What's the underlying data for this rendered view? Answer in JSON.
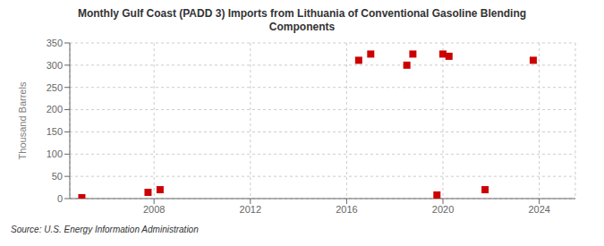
{
  "chart_data": {
    "type": "scatter",
    "title": "Monthly Gulf Coast (PADD 3) Imports from Lithuania of Conventional Gasoline Blending\nComponents",
    "ylabel": "Thousand Barrels",
    "annotations": [
      "Source: U.S. Energy Information Administration"
    ],
    "x": [
      2005.0,
      2007.75,
      2008.25,
      2016.5,
      2017.0,
      2018.5,
      2018.75,
      2019.75,
      2020.0,
      2020.25,
      2021.75,
      2023.75
    ],
    "values": [
      2,
      14,
      20,
      311,
      325,
      300,
      325,
      8,
      325,
      320,
      20,
      311
    ],
    "color": "#cc0000",
    "marker": "square",
    "xlim": [
      2004.5,
      2025.5
    ],
    "ylim": [
      0,
      350
    ],
    "xticks": [
      2008,
      2012,
      2016,
      2020,
      2024
    ],
    "yticks": [
      0,
      50,
      100,
      150,
      200,
      250,
      300,
      350
    ],
    "grid": true
  }
}
